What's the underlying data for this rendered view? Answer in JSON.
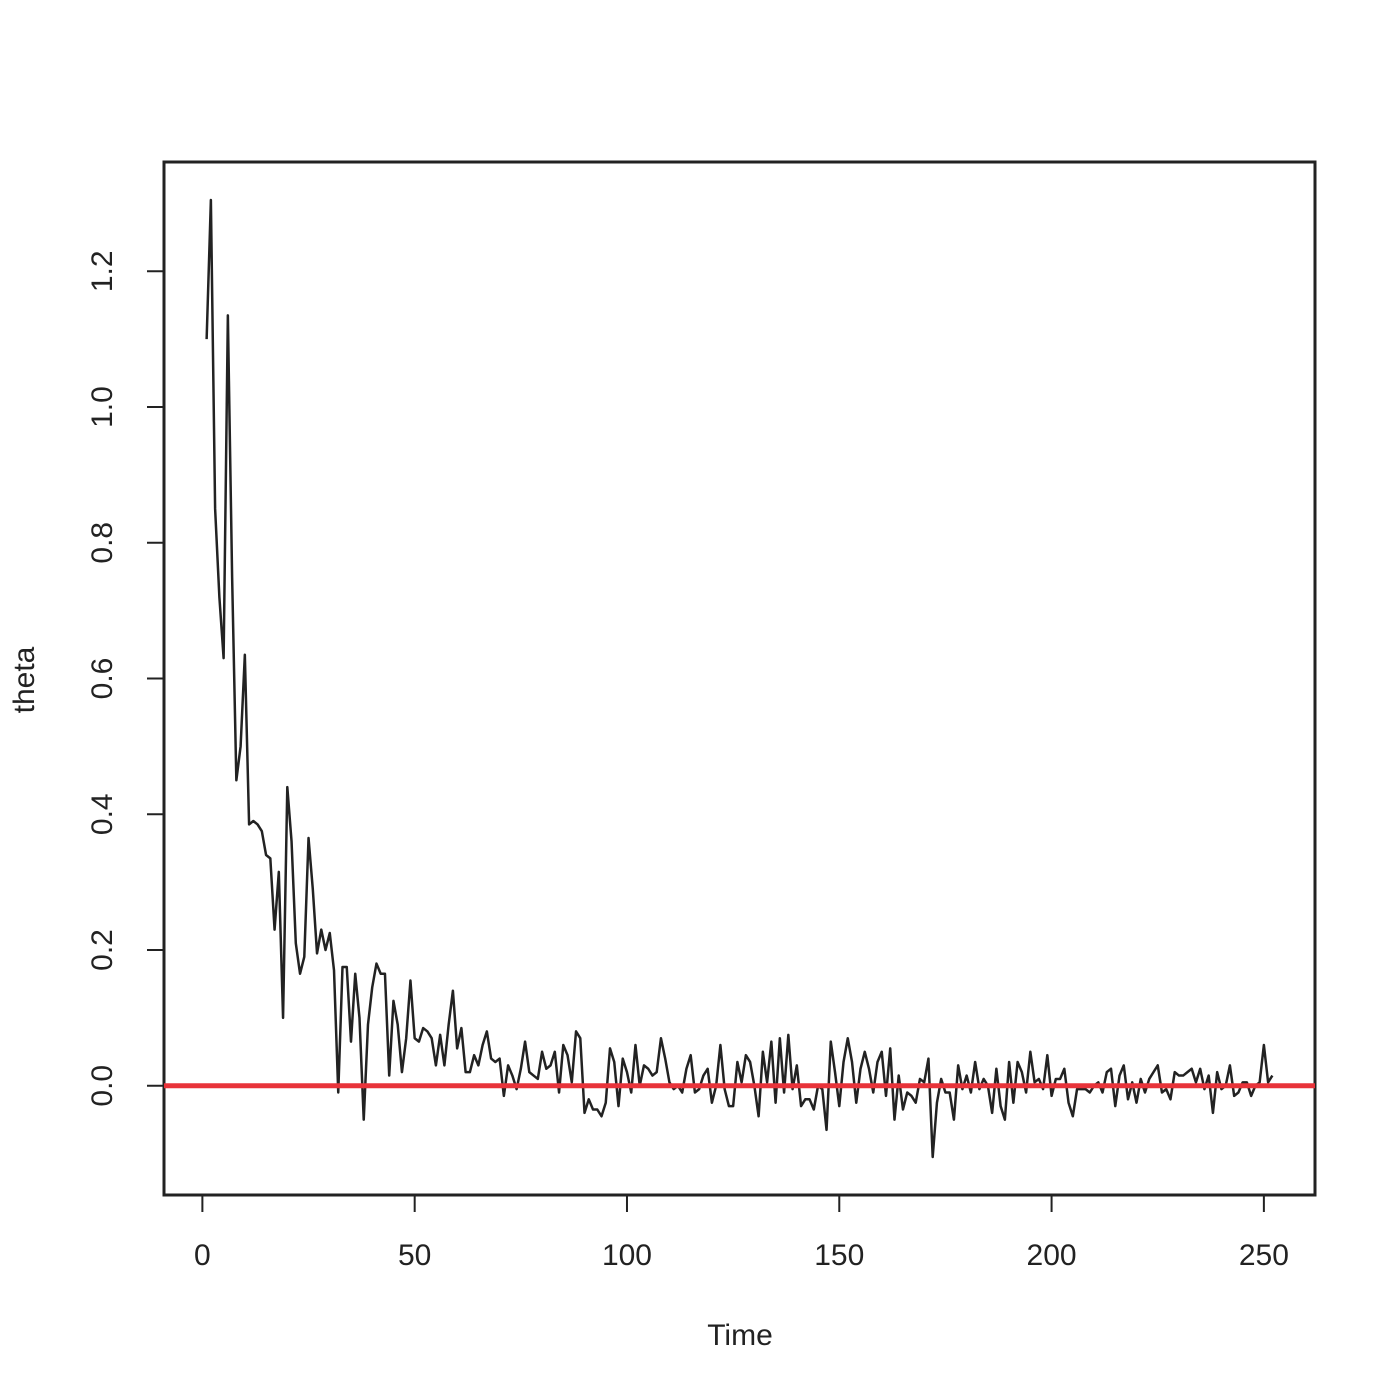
{
  "chart_data": {
    "type": "line",
    "xlabel": "Time",
    "ylabel": "theta",
    "color": "#222222",
    "hlines": [
      {
        "value": 0,
        "color": "#e8333a"
      }
    ],
    "xlim": [
      -9.04,
      262.04
    ],
    "ylim": [
      -0.161,
      1.361
    ],
    "xticks": [
      0,
      50,
      100,
      150,
      200,
      250
    ],
    "yticks": [
      {
        "value": 0,
        "label": "0.0"
      },
      0.2,
      0.4,
      0.6,
      0.8,
      {
        "value": 1,
        "label": "1.0"
      },
      1.2
    ],
    "x": [
      1,
      2,
      3,
      4,
      5,
      6,
      7,
      8,
      9,
      10,
      11,
      12,
      13,
      14,
      15,
      16,
      17,
      18,
      19,
      20,
      21,
      22,
      23,
      24,
      25,
      26,
      27,
      28,
      29,
      30,
      31,
      32,
      33,
      34,
      35,
      36,
      37,
      38,
      39,
      40,
      41,
      42,
      43,
      44,
      45,
      46,
      47,
      48,
      49,
      50,
      51,
      52,
      53,
      54,
      55,
      56,
      57,
      58,
      59,
      60,
      61,
      62,
      63,
      64,
      65,
      66,
      67,
      68,
      69,
      70,
      71,
      72,
      73,
      74,
      75,
      76,
      77,
      78,
      79,
      80,
      81,
      82,
      83,
      84,
      85,
      86,
      87,
      88,
      89,
      90,
      91,
      92,
      93,
      94,
      95,
      96,
      97,
      98,
      99,
      100,
      101,
      102,
      103,
      104,
      105,
      106,
      107,
      108,
      109,
      110,
      111,
      112,
      113,
      114,
      115,
      116,
      117,
      118,
      119,
      120,
      121,
      122,
      123,
      124,
      125,
      126,
      127,
      128,
      129,
      130,
      131,
      132,
      133,
      134,
      135,
      136,
      137,
      138,
      139,
      140,
      141,
      142,
      143,
      144,
      145,
      146,
      147,
      148,
      149,
      150,
      151,
      152,
      153,
      154,
      155,
      156,
      157,
      158,
      159,
      160,
      161,
      162,
      163,
      164,
      165,
      166,
      167,
      168,
      169,
      170,
      171,
      172,
      173,
      174,
      175,
      176,
      177,
      178,
      179,
      180,
      181,
      182,
      183,
      184,
      185,
      186,
      187,
      188,
      189,
      190,
      191,
      192,
      193,
      194,
      195,
      196,
      197,
      198,
      199,
      200,
      201,
      202,
      203,
      204,
      205,
      206,
      207,
      208,
      209,
      210,
      211,
      212,
      213,
      214,
      215,
      216,
      217,
      218,
      219,
      220,
      221,
      222,
      223,
      224,
      225,
      226,
      227,
      228,
      229,
      230,
      231,
      232,
      233,
      234,
      235,
      236,
      237,
      238,
      239,
      240,
      241,
      242,
      243,
      244,
      245,
      246,
      247,
      248,
      249,
      250,
      251,
      252
    ],
    "values": [
      1.1,
      1.305,
      0.85,
      0.72,
      0.63,
      1.135,
      0.75,
      0.45,
      0.5,
      0.635,
      0.385,
      0.39,
      0.385,
      0.375,
      0.34,
      0.335,
      0.23,
      0.315,
      0.1,
      0.44,
      0.36,
      0.21,
      0.165,
      0.19,
      0.365,
      0.29,
      0.195,
      0.23,
      0.2,
      0.225,
      0.17,
      -0.01,
      0.175,
      0.175,
      0.065,
      0.165,
      0.1,
      -0.05,
      0.09,
      0.145,
      0.18,
      0.165,
      0.165,
      0.015,
      0.125,
      0.09,
      0.02,
      0.07,
      0.155,
      0.07,
      0.065,
      0.085,
      0.08,
      0.07,
      0.03,
      0.075,
      0.03,
      0.09,
      0.14,
      0.055,
      0.085,
      0.02,
      0.02,
      0.045,
      0.03,
      0.06,
      0.08,
      0.04,
      0.035,
      0.04,
      -0.015,
      0.03,
      0.015,
      -0.005,
      0.025,
      0.065,
      0.02,
      0.015,
      0.01,
      0.05,
      0.025,
      0.03,
      0.05,
      -0.01,
      0.06,
      0.045,
      0.005,
      0.08,
      0.07,
      -0.04,
      -0.02,
      -0.035,
      -0.035,
      -0.045,
      -0.025,
      0.055,
      0.035,
      -0.03,
      0.04,
      0.02,
      -0.01,
      0.06,
      0.0,
      0.03,
      0.025,
      0.015,
      0.02,
      0.07,
      0.04,
      0.005,
      -0.005,
      0.0,
      -0.01,
      0.025,
      0.045,
      -0.01,
      -0.005,
      0.015,
      0.025,
      -0.025,
      0.0,
      0.06,
      -0.005,
      -0.03,
      -0.03,
      0.035,
      0.005,
      0.045,
      0.035,
      0.0,
      -0.045,
      0.05,
      0.005,
      0.065,
      -0.025,
      0.07,
      -0.01,
      0.075,
      -0.005,
      0.03,
      -0.03,
      -0.02,
      -0.02,
      -0.035,
      0.0,
      -0.005,
      -0.065,
      0.065,
      0.02,
      -0.03,
      0.035,
      0.07,
      0.035,
      -0.025,
      0.025,
      0.05,
      0.025,
      -0.01,
      0.035,
      0.05,
      -0.015,
      0.055,
      -0.05,
      0.015,
      -0.035,
      -0.01,
      -0.015,
      -0.025,
      0.01,
      0.005,
      0.04,
      -0.105,
      -0.025,
      0.01,
      -0.01,
      -0.01,
      -0.05,
      0.03,
      -0.005,
      0.015,
      -0.01,
      0.035,
      -0.005,
      0.01,
      0.0,
      -0.04,
      0.025,
      -0.03,
      -0.05,
      0.035,
      -0.025,
      0.035,
      0.02,
      -0.01,
      0.05,
      0.005,
      0.01,
      -0.005,
      0.045,
      -0.015,
      0.01,
      0.01,
      0.025,
      -0.025,
      -0.045,
      -0.005,
      -0.005,
      -0.005,
      -0.01,
      0.0,
      0.005,
      -0.01,
      0.02,
      0.025,
      -0.03,
      0.015,
      0.03,
      -0.02,
      0.005,
      -0.025,
      0.01,
      -0.01,
      0.01,
      0.02,
      0.03,
      -0.01,
      -0.005,
      -0.02,
      0.02,
      0.015,
      0.015,
      0.02,
      0.025,
      0.005,
      0.025,
      -0.005,
      0.015,
      -0.04,
      0.02,
      -0.005,
      0.0,
      0.03,
      -0.015,
      -0.01,
      0.005,
      0.005,
      -0.015,
      0.0,
      0.005,
      0.06,
      0.005,
      0.015
    ]
  }
}
